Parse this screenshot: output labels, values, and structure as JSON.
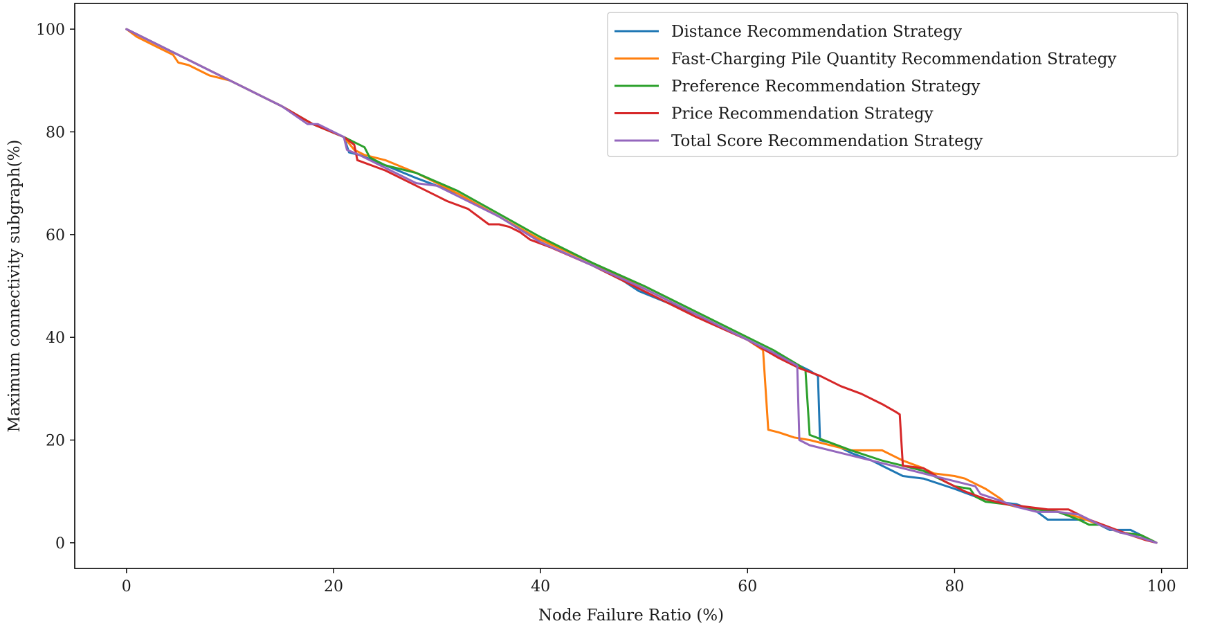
{
  "chart_data": {
    "type": "line",
    "title": "",
    "xlabel": "Node Failure Ratio (%)",
    "ylabel": "Maximum connectivity subgraph(%)",
    "xlim": [
      -5,
      102.5
    ],
    "ylim": [
      -5,
      105
    ],
    "xticks": [
      0,
      20,
      40,
      60,
      80,
      100
    ],
    "yticks": [
      0,
      20,
      40,
      60,
      80,
      100
    ],
    "grid": false,
    "legend_position": "top-right",
    "series": [
      {
        "name": "Distance Recommendation Strategy",
        "color": "#1f77b4",
        "points": [
          [
            0,
            100
          ],
          [
            5,
            95
          ],
          [
            10,
            90
          ],
          [
            15,
            85
          ],
          [
            18,
            81.5
          ],
          [
            21,
            79
          ],
          [
            21.5,
            76
          ],
          [
            22.5,
            75.5
          ],
          [
            25,
            73.5
          ],
          [
            28,
            71
          ],
          [
            32,
            68
          ],
          [
            36,
            63.5
          ],
          [
            39,
            60
          ],
          [
            40,
            58.5
          ],
          [
            45,
            54
          ],
          [
            48,
            51
          ],
          [
            49.5,
            49
          ],
          [
            55,
            44.5
          ],
          [
            60,
            39.5
          ],
          [
            62,
            37.5
          ],
          [
            64,
            35.5
          ],
          [
            65,
            34.5
          ],
          [
            66,
            33.5
          ],
          [
            66.8,
            32.5
          ],
          [
            67,
            20
          ],
          [
            68,
            19.5
          ],
          [
            70,
            17.5
          ],
          [
            72,
            16
          ],
          [
            75,
            13
          ],
          [
            77,
            12.5
          ],
          [
            80,
            10.5
          ],
          [
            82,
            9
          ],
          [
            84,
            8
          ],
          [
            86,
            7.5
          ],
          [
            88,
            6
          ],
          [
            89,
            4.5
          ],
          [
            90,
            4.5
          ],
          [
            93,
            4.5
          ],
          [
            95,
            2.5
          ],
          [
            97,
            2.5
          ],
          [
            99.5,
            0
          ]
        ]
      },
      {
        "name": "Fast-Charging Pile Quantity Recommendation Strategy",
        "color": "#ff7f0e",
        "points": [
          [
            0,
            100
          ],
          [
            1,
            98.5
          ],
          [
            3,
            96.5
          ],
          [
            4.5,
            95
          ],
          [
            5,
            93.5
          ],
          [
            6,
            93
          ],
          [
            8,
            91
          ],
          [
            10,
            90
          ],
          [
            15,
            85
          ],
          [
            18,
            81.5
          ],
          [
            21,
            79
          ],
          [
            22,
            76.5
          ],
          [
            23,
            75.5
          ],
          [
            25,
            74.5
          ],
          [
            28,
            72
          ],
          [
            32,
            68
          ],
          [
            36,
            63.5
          ],
          [
            40,
            59
          ],
          [
            45,
            54.5
          ],
          [
            50,
            49.5
          ],
          [
            55,
            44.5
          ],
          [
            60,
            39.5
          ],
          [
            61.5,
            37.5
          ],
          [
            62,
            22
          ],
          [
            63,
            21.5
          ],
          [
            64.5,
            20.5
          ],
          [
            66,
            20
          ],
          [
            68,
            19
          ],
          [
            70,
            18
          ],
          [
            73,
            18
          ],
          [
            75,
            16
          ],
          [
            77,
            14.5
          ],
          [
            78,
            13.5
          ],
          [
            80,
            13
          ],
          [
            81,
            12.5
          ],
          [
            83,
            10.5
          ],
          [
            84.5,
            8.5
          ],
          [
            85,
            7.5
          ],
          [
            86,
            7
          ],
          [
            88,
            6.5
          ],
          [
            90,
            6
          ],
          [
            92,
            5
          ],
          [
            94,
            3.5
          ],
          [
            96,
            2
          ],
          [
            98,
            1.5
          ],
          [
            99.5,
            0
          ]
        ]
      },
      {
        "name": "Preference Recommendation Strategy",
        "color": "#2ca02c",
        "points": [
          [
            0,
            100
          ],
          [
            5,
            95
          ],
          [
            10,
            90
          ],
          [
            15,
            85
          ],
          [
            18,
            81.5
          ],
          [
            21,
            79
          ],
          [
            22,
            78
          ],
          [
            23,
            77
          ],
          [
            23.5,
            75
          ],
          [
            25,
            73.5
          ],
          [
            28,
            72
          ],
          [
            32,
            68.5
          ],
          [
            36,
            64
          ],
          [
            40,
            59.5
          ],
          [
            45,
            54.5
          ],
          [
            50,
            50
          ],
          [
            55,
            45
          ],
          [
            60,
            40
          ],
          [
            62.5,
            37.5
          ],
          [
            65,
            34.5
          ],
          [
            65.6,
            33.5
          ],
          [
            66,
            21
          ],
          [
            68,
            19.5
          ],
          [
            70,
            18
          ],
          [
            73,
            16
          ],
          [
            75,
            15
          ],
          [
            77,
            14
          ],
          [
            80,
            11
          ],
          [
            81.5,
            10.5
          ],
          [
            82,
            9
          ],
          [
            83,
            8
          ],
          [
            85,
            7.5
          ],
          [
            88,
            6.5
          ],
          [
            90,
            6
          ],
          [
            92,
            4.5
          ],
          [
            93,
            3.5
          ],
          [
            94,
            3.5
          ],
          [
            96,
            2
          ],
          [
            98,
            1.5
          ],
          [
            99.5,
            0
          ]
        ]
      },
      {
        "name": "Price Recommendation Strategy",
        "color": "#d62728",
        "points": [
          [
            0,
            100
          ],
          [
            5,
            95
          ],
          [
            10,
            90
          ],
          [
            15,
            85
          ],
          [
            18,
            81.5
          ],
          [
            21,
            79
          ],
          [
            22,
            77.5
          ],
          [
            22.3,
            74.5
          ],
          [
            25,
            72.5
          ],
          [
            28,
            69.5
          ],
          [
            31,
            66.5
          ],
          [
            33,
            65
          ],
          [
            35,
            62
          ],
          [
            36,
            62
          ],
          [
            37,
            61.5
          ],
          [
            38,
            60.5
          ],
          [
            39,
            59
          ],
          [
            41,
            57.5
          ],
          [
            45,
            54
          ],
          [
            49,
            50
          ],
          [
            52,
            47
          ],
          [
            55,
            44
          ],
          [
            60,
            39.5
          ],
          [
            63,
            36
          ],
          [
            65,
            34
          ],
          [
            67,
            32.5
          ],
          [
            69,
            30.5
          ],
          [
            71,
            29
          ],
          [
            73,
            27
          ],
          [
            74.3,
            25.5
          ],
          [
            74.7,
            25
          ],
          [
            75,
            15
          ],
          [
            77,
            14.5
          ],
          [
            79,
            12
          ],
          [
            81,
            10
          ],
          [
            83,
            8.5
          ],
          [
            85,
            7.5
          ],
          [
            87,
            7
          ],
          [
            89,
            6.5
          ],
          [
            91,
            6.5
          ],
          [
            93,
            4.5
          ],
          [
            95,
            3
          ],
          [
            97,
            1.5
          ],
          [
            98.5,
            0.5
          ],
          [
            99.5,
            0
          ]
        ]
      },
      {
        "name": "Total Score Recommendation Strategy",
        "color": "#9467bd",
        "points": [
          [
            0,
            100
          ],
          [
            5,
            95
          ],
          [
            10,
            90
          ],
          [
            15,
            85
          ],
          [
            17.5,
            81.5
          ],
          [
            18.5,
            81.5
          ],
          [
            21,
            79
          ],
          [
            21.3,
            76.5
          ],
          [
            22.5,
            75.5
          ],
          [
            25,
            73
          ],
          [
            28,
            70
          ],
          [
            30,
            69.5
          ],
          [
            32,
            67.5
          ],
          [
            36,
            63.5
          ],
          [
            40,
            58.5
          ],
          [
            45,
            54
          ],
          [
            50,
            49.5
          ],
          [
            55,
            44.5
          ],
          [
            60,
            39.5
          ],
          [
            62.5,
            37
          ],
          [
            64.8,
            34.5
          ],
          [
            65,
            20
          ],
          [
            66,
            19
          ],
          [
            68,
            18
          ],
          [
            70,
            17
          ],
          [
            73,
            15.5
          ],
          [
            75,
            14.5
          ],
          [
            78,
            13
          ],
          [
            80,
            12
          ],
          [
            82,
            11
          ],
          [
            82.5,
            9.5
          ],
          [
            84,
            8.5
          ],
          [
            86,
            7
          ],
          [
            88,
            6
          ],
          [
            90,
            6
          ],
          [
            92,
            5.5
          ],
          [
            94,
            3.5
          ],
          [
            96,
            2
          ],
          [
            98,
            1
          ],
          [
            99.5,
            0
          ]
        ]
      }
    ]
  }
}
